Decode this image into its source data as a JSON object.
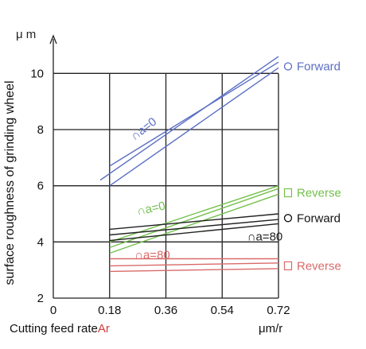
{
  "chart_data": {
    "type": "line",
    "y_unit": "μ m",
    "ylabel": "surface roughness of grinding wheel",
    "xlabel_prefix": "Cutting feed rate",
    "xlabel_symbol": "Ar",
    "x_unit": "μm/r",
    "xlim": [
      0,
      0.72
    ],
    "ylim": [
      2,
      11
    ],
    "x_ticks": [
      {
        "value": 0,
        "label": "0"
      },
      {
        "value": 0.18,
        "label": "0.18"
      },
      {
        "value": 0.36,
        "label": "0.36"
      },
      {
        "value": 0.54,
        "label": "0.54"
      },
      {
        "value": 0.72,
        "label": "0.72"
      }
    ],
    "y_ticks": [
      {
        "value": 2,
        "label": "2"
      },
      {
        "value": 4,
        "label": "4"
      },
      {
        "value": 6,
        "label": "6"
      },
      {
        "value": 8,
        "label": "8"
      },
      {
        "value": 10,
        "label": "10"
      }
    ],
    "grid": true,
    "groups": [
      {
        "curve_label": "∩a=0",
        "direction_label": "Forward",
        "marker": "circle",
        "color": "#5b6fc4",
        "lines": [
          {
            "x": [
              0.15,
              0.72
            ],
            "y": [
              6.2,
              10.6
            ]
          },
          {
            "x": [
              0.18,
              0.72
            ],
            "y": [
              6.0,
              10.2
            ]
          },
          {
            "x": [
              0.18,
              0.72
            ],
            "y": [
              6.7,
              10.4
            ]
          }
        ]
      },
      {
        "curve_label": "∩a=0",
        "direction_label": "Reverse",
        "marker": "square",
        "color": "#73c04b",
        "lines": [
          {
            "x": [
              0.18,
              0.72
            ],
            "y": [
              3.6,
              5.7
            ]
          },
          {
            "x": [
              0.18,
              0.72
            ],
            "y": [
              3.8,
              5.9
            ]
          },
          {
            "x": [
              0.18,
              0.72
            ],
            "y": [
              4.0,
              6.0
            ]
          }
        ]
      },
      {
        "curve_label": "∩a=80",
        "direction_label": "Forward",
        "marker": "circle",
        "color": "#222222",
        "lines": [
          {
            "x": [
              0.18,
              0.72
            ],
            "y": [
              4.05,
              4.65
            ]
          },
          {
            "x": [
              0.18,
              0.72
            ],
            "y": [
              4.25,
              4.8
            ]
          },
          {
            "x": [
              0.18,
              0.72
            ],
            "y": [
              4.45,
              5.0
            ]
          }
        ]
      },
      {
        "curve_label": "∩a=80",
        "direction_label": "Reverse",
        "marker": "square",
        "color": "#d96a6a",
        "lines": [
          {
            "x": [
              0.18,
              0.72
            ],
            "y": [
              2.95,
              3.05
            ]
          },
          {
            "x": [
              0.18,
              0.72
            ],
            "y": [
              3.15,
              3.25
            ]
          },
          {
            "x": [
              0.18,
              0.72
            ],
            "y": [
              3.4,
              3.4
            ]
          }
        ]
      }
    ]
  }
}
